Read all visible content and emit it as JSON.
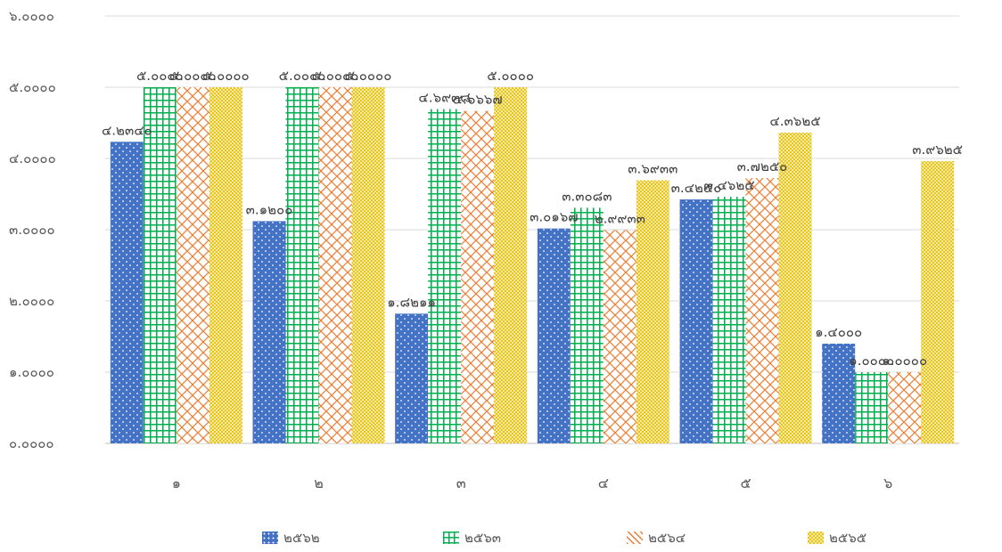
{
  "chart_data": {
    "type": "bar",
    "categories": [
      "๑",
      "๒",
      "๓",
      "๔",
      "๕",
      "๖"
    ],
    "series": [
      {
        "name": "๒๕๖๒",
        "values": [
          4.234,
          3.12,
          1.8211,
          3.0167,
          3.425,
          1.4
        ],
        "labels": [
          "๔.๒๓๔๐",
          "๓.๑๒๐๐",
          "๑.๘๒๑๑",
          "๓.๐๑๖๗",
          "๓.๔๒๕๐",
          "๑.๔๐๐๐"
        ],
        "color": "#4472C4",
        "pattern": "dots"
      },
      {
        "name": "๒๕๖๓",
        "values": [
          5.0,
          5.0,
          4.6938,
          3.3083,
          3.4625,
          1.0
        ],
        "labels": [
          "๕.๐๐๐๐",
          "๕.๐๐๐๐",
          "๔.๖๙๓๘",
          "๓.๓๐๘๓",
          "๓.๔๖๒๕",
          "๑.๐๐๐๐"
        ],
        "color": "#00B050",
        "pattern": "grid"
      },
      {
        "name": "๒๕๖๔",
        "values": [
          5.0,
          5.0,
          4.6667,
          2.9933,
          3.725,
          1.0
        ],
        "labels": [
          "๕.๐๐๐๐",
          "๕.๐๐๐๐",
          "๔.๖๖๖๗",
          "๒.๙๙๓๓",
          "๓.๗๒๕๐",
          "๑.๐๐๐๐"
        ],
        "color": "#ED7D31",
        "pattern": "zigzag"
      },
      {
        "name": "๒๕๖๕",
        "values": [
          5.0,
          5.0,
          5.0,
          3.6933,
          4.3625,
          3.9625
        ],
        "labels": [
          "๕.๐๐๐๐",
          "๕.๐๐๐๐",
          "๕.๐๐๐๐",
          "๓.๖๙๓๓",
          "๔.๓๖๒๕",
          "๓.๙๖๒๕"
        ],
        "color": "#E6C619",
        "pattern": "checker"
      }
    ],
    "ylim": [
      0,
      6
    ],
    "yticks": [
      0,
      1,
      2,
      3,
      4,
      5,
      6
    ],
    "ytick_labels": [
      "๐.๐๐๐๐",
      "๑.๐๐๐๐",
      "๒.๐๐๐๐",
      "๓.๐๐๐๐",
      "๔.๐๐๐๐",
      "๕.๐๐๐๐",
      "๖.๐๐๐๐"
    ],
    "grid": true,
    "legend_position": "bottom"
  }
}
